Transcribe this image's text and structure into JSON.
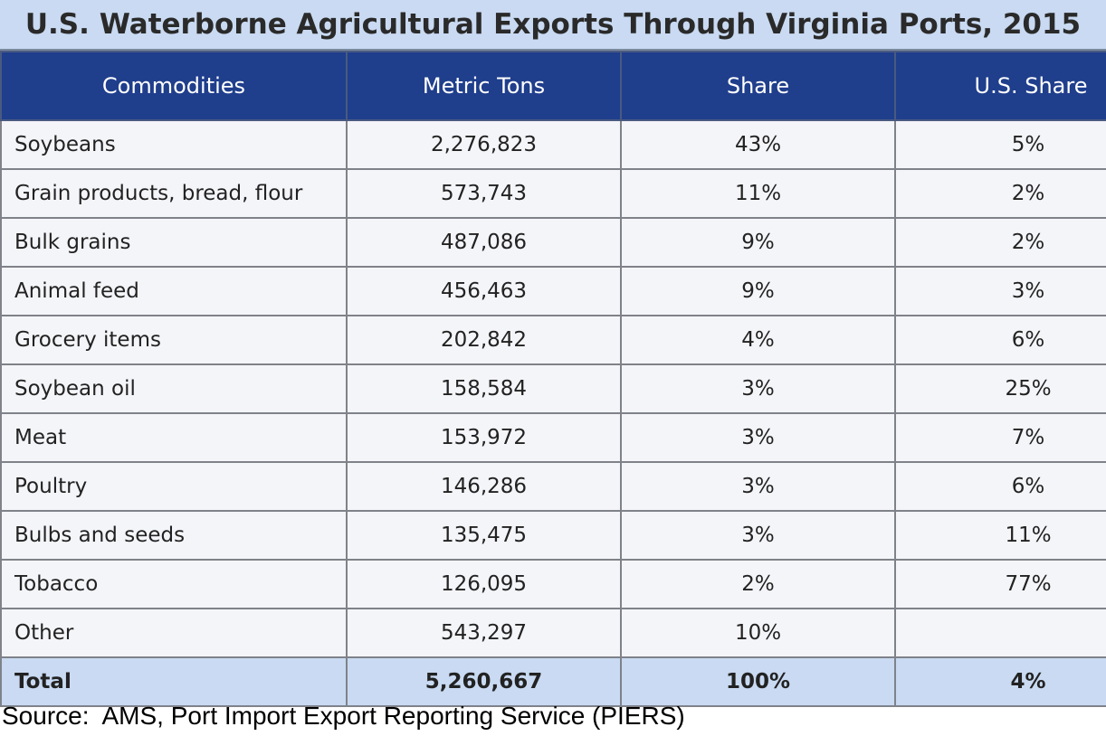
{
  "title": "U.S. Waterborne Agricultural Exports Through Virginia Ports, 2015",
  "source": "Source:  AMS, Port Import Export Reporting Service (PIERS)",
  "colors": {
    "header_bg": "#1f3e8c",
    "title_bg": "#c9daf2",
    "total_bg": "#c9daf2",
    "cell_bg": "#f4f5f9"
  },
  "chart_data": {
    "type": "table",
    "title": "U.S. Waterborne Agricultural Exports Through Virginia Ports, 2015",
    "columns": [
      "Commodities",
      "Metric Tons",
      "Share",
      "U.S. Share"
    ],
    "rows": [
      [
        "Soybeans",
        "2,276,823",
        "43%",
        "5%"
      ],
      [
        "Grain products, bread, flour",
        "573,743",
        "11%",
        "2%"
      ],
      [
        "Bulk grains",
        "487,086",
        "9%",
        "2%"
      ],
      [
        "Animal feed",
        "456,463",
        "9%",
        "3%"
      ],
      [
        "Grocery items",
        "202,842",
        "4%",
        "6%"
      ],
      [
        "Soybean oil",
        "158,584",
        "3%",
        "25%"
      ],
      [
        "Meat",
        "153,972",
        "3%",
        "7%"
      ],
      [
        "Poultry",
        "146,286",
        "3%",
        "6%"
      ],
      [
        "Bulbs and seeds",
        "135,475",
        "3%",
        "11%"
      ],
      [
        "Tobacco",
        "126,095",
        "2%",
        "77%"
      ],
      [
        "Other",
        "543,297",
        "10%",
        ""
      ]
    ],
    "total": [
      "Total",
      "5,260,667",
      "100%",
      "4%"
    ]
  }
}
